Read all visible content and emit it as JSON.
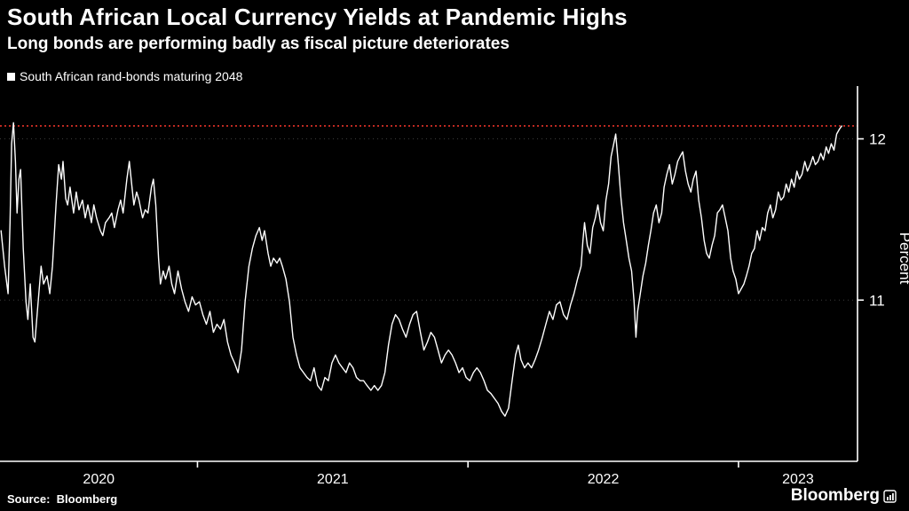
{
  "header": {
    "title": "South African Local Currency Yields at Pandemic Highs",
    "subtitle": "Long bonds are performing badly as fiscal picture deteriorates"
  },
  "legend": {
    "label": "South African rand-bonds maturing 2048",
    "marker_color": "#ffffff"
  },
  "footer": {
    "source": "Source:  Bloomberg",
    "brand": "Bloomberg"
  },
  "chart_data": {
    "type": "line",
    "title": "South African Local Currency Yields at Pandemic Highs",
    "subtitle": "Long bonds are performing badly as fiscal picture deteriorates",
    "xlabel": "",
    "ylabel": "Percent",
    "xlim": [
      2020.27,
      2023.44
    ],
    "ylim": [
      10.0,
      12.3
    ],
    "y_ticks": [
      11,
      12
    ],
    "x_year_boundaries": [
      2021,
      2022,
      2023
    ],
    "x_year_labels": [
      "2020",
      "2021",
      "2022",
      "2023"
    ],
    "grid": "horizontal-dotted",
    "legend_position": "top-left",
    "colors": {
      "background": "#000000",
      "line": "#ffffff",
      "axis": "#ffffff",
      "grid": "#3c3c3c",
      "reference": "#e63329"
    },
    "reference_line": {
      "value": 12.08,
      "color": "#e63329",
      "style": "dotted"
    },
    "series": [
      {
        "name": "South African rand-bonds maturing 2048",
        "color": "#ffffff",
        "points": [
          [
            2020.274,
            11.43
          ],
          [
            2020.287,
            11.21
          ],
          [
            2020.3,
            11.04
          ],
          [
            2020.307,
            11.48
          ],
          [
            2020.313,
            11.97
          ],
          [
            2020.32,
            12.1
          ],
          [
            2020.327,
            11.86
          ],
          [
            2020.333,
            11.54
          ],
          [
            2020.34,
            11.75
          ],
          [
            2020.346,
            11.81
          ],
          [
            2020.356,
            11.32
          ],
          [
            2020.366,
            10.99
          ],
          [
            2020.373,
            10.88
          ],
          [
            2020.382,
            11.1
          ],
          [
            2020.392,
            10.77
          ],
          [
            2020.399,
            10.74
          ],
          [
            2020.408,
            10.93
          ],
          [
            2020.422,
            11.21
          ],
          [
            2020.431,
            11.1
          ],
          [
            2020.444,
            11.15
          ],
          [
            2020.454,
            11.04
          ],
          [
            2020.464,
            11.21
          ],
          [
            2020.477,
            11.59
          ],
          [
            2020.487,
            11.84
          ],
          [
            2020.497,
            11.75
          ],
          [
            2020.503,
            11.86
          ],
          [
            2020.513,
            11.63
          ],
          [
            2020.52,
            11.59
          ],
          [
            2020.529,
            11.7
          ],
          [
            2020.542,
            11.54
          ],
          [
            2020.552,
            11.67
          ],
          [
            2020.562,
            11.56
          ],
          [
            2020.575,
            11.62
          ],
          [
            2020.585,
            11.51
          ],
          [
            2020.595,
            11.59
          ],
          [
            2020.608,
            11.48
          ],
          [
            2020.617,
            11.59
          ],
          [
            2020.627,
            11.51
          ],
          [
            2020.641,
            11.43
          ],
          [
            2020.65,
            11.4
          ],
          [
            2020.66,
            11.48
          ],
          [
            2020.673,
            11.51
          ],
          [
            2020.683,
            11.54
          ],
          [
            2020.693,
            11.45
          ],
          [
            2020.706,
            11.56
          ],
          [
            2020.716,
            11.62
          ],
          [
            2020.725,
            11.54
          ],
          [
            2020.739,
            11.75
          ],
          [
            2020.748,
            11.86
          ],
          [
            2020.758,
            11.7
          ],
          [
            2020.765,
            11.59
          ],
          [
            2020.775,
            11.67
          ],
          [
            2020.784,
            11.62
          ],
          [
            2020.797,
            11.51
          ],
          [
            2020.807,
            11.56
          ],
          [
            2020.817,
            11.54
          ],
          [
            2020.83,
            11.7
          ],
          [
            2020.837,
            11.75
          ],
          [
            2020.846,
            11.59
          ],
          [
            2020.856,
            11.26
          ],
          [
            2020.863,
            11.1
          ],
          [
            2020.873,
            11.18
          ],
          [
            2020.882,
            11.13
          ],
          [
            2020.895,
            11.21
          ],
          [
            2020.905,
            11.1
          ],
          [
            2020.915,
            11.04
          ],
          [
            2020.928,
            11.18
          ],
          [
            2020.941,
            11.07
          ],
          [
            2020.954,
            10.99
          ],
          [
            2020.967,
            10.93
          ],
          [
            2020.98,
            11.02
          ],
          [
            2020.993,
            10.97
          ],
          [
            2021.007,
            10.99
          ],
          [
            2021.02,
            10.91
          ],
          [
            2021.033,
            10.85
          ],
          [
            2021.046,
            10.93
          ],
          [
            2021.059,
            10.8
          ],
          [
            2021.072,
            10.85
          ],
          [
            2021.085,
            10.82
          ],
          [
            2021.098,
            10.88
          ],
          [
            2021.111,
            10.74
          ],
          [
            2021.124,
            10.66
          ],
          [
            2021.137,
            10.61
          ],
          [
            2021.15,
            10.55
          ],
          [
            2021.163,
            10.69
          ],
          [
            2021.176,
            10.99
          ],
          [
            2021.19,
            11.21
          ],
          [
            2021.203,
            11.32
          ],
          [
            2021.216,
            11.4
          ],
          [
            2021.229,
            11.45
          ],
          [
            2021.239,
            11.37
          ],
          [
            2021.248,
            11.43
          ],
          [
            2021.261,
            11.29
          ],
          [
            2021.271,
            11.21
          ],
          [
            2021.281,
            11.26
          ],
          [
            2021.294,
            11.23
          ],
          [
            2021.304,
            11.26
          ],
          [
            2021.314,
            11.21
          ],
          [
            2021.327,
            11.13
          ],
          [
            2021.34,
            10.99
          ],
          [
            2021.353,
            10.77
          ],
          [
            2021.366,
            10.66
          ],
          [
            2021.379,
            10.58
          ],
          [
            2021.392,
            10.55
          ],
          [
            2021.405,
            10.52
          ],
          [
            2021.418,
            10.5
          ],
          [
            2021.431,
            10.58
          ],
          [
            2021.444,
            10.47
          ],
          [
            2021.458,
            10.44
          ],
          [
            2021.471,
            10.52
          ],
          [
            2021.484,
            10.5
          ],
          [
            2021.497,
            10.61
          ],
          [
            2021.51,
            10.66
          ],
          [
            2021.523,
            10.61
          ],
          [
            2021.536,
            10.58
          ],
          [
            2021.549,
            10.55
          ],
          [
            2021.562,
            10.61
          ],
          [
            2021.575,
            10.58
          ],
          [
            2021.588,
            10.52
          ],
          [
            2021.601,
            10.5
          ],
          [
            2021.614,
            10.5
          ],
          [
            2021.627,
            10.47
          ],
          [
            2021.641,
            10.44
          ],
          [
            2021.654,
            10.47
          ],
          [
            2021.667,
            10.44
          ],
          [
            2021.68,
            10.47
          ],
          [
            2021.693,
            10.55
          ],
          [
            2021.706,
            10.72
          ],
          [
            2021.719,
            10.85
          ],
          [
            2021.732,
            10.91
          ],
          [
            2021.745,
            10.88
          ],
          [
            2021.758,
            10.82
          ],
          [
            2021.771,
            10.77
          ],
          [
            2021.784,
            10.85
          ],
          [
            2021.797,
            10.91
          ],
          [
            2021.81,
            10.93
          ],
          [
            2021.824,
            10.8
          ],
          [
            2021.837,
            10.69
          ],
          [
            2021.85,
            10.74
          ],
          [
            2021.863,
            10.8
          ],
          [
            2021.876,
            10.77
          ],
          [
            2021.889,
            10.69
          ],
          [
            2021.902,
            10.61
          ],
          [
            2021.915,
            10.66
          ],
          [
            2021.928,
            10.69
          ],
          [
            2021.941,
            10.66
          ],
          [
            2021.954,
            10.61
          ],
          [
            2021.967,
            10.55
          ],
          [
            2021.98,
            10.58
          ],
          [
            2021.993,
            10.52
          ],
          [
            2022.007,
            10.5
          ],
          [
            2022.02,
            10.55
          ],
          [
            2022.033,
            10.58
          ],
          [
            2022.046,
            10.55
          ],
          [
            2022.059,
            10.5
          ],
          [
            2022.072,
            10.44
          ],
          [
            2022.085,
            10.42
          ],
          [
            2022.098,
            10.39
          ],
          [
            2022.111,
            10.36
          ],
          [
            2022.124,
            10.31
          ],
          [
            2022.137,
            10.28
          ],
          [
            2022.15,
            10.33
          ],
          [
            2022.163,
            10.5
          ],
          [
            2022.176,
            10.66
          ],
          [
            2022.186,
            10.72
          ],
          [
            2022.196,
            10.63
          ],
          [
            2022.209,
            10.58
          ],
          [
            2022.222,
            10.61
          ],
          [
            2022.235,
            10.58
          ],
          [
            2022.248,
            10.63
          ],
          [
            2022.261,
            10.69
          ],
          [
            2022.275,
            10.77
          ],
          [
            2022.288,
            10.85
          ],
          [
            2022.301,
            10.93
          ],
          [
            2022.314,
            10.88
          ],
          [
            2022.327,
            10.97
          ],
          [
            2022.34,
            10.99
          ],
          [
            2022.353,
            10.91
          ],
          [
            2022.366,
            10.88
          ],
          [
            2022.379,
            10.97
          ],
          [
            2022.392,
            11.04
          ],
          [
            2022.405,
            11.13
          ],
          [
            2022.418,
            11.21
          ],
          [
            2022.425,
            11.37
          ],
          [
            2022.431,
            11.48
          ],
          [
            2022.441,
            11.34
          ],
          [
            2022.451,
            11.29
          ],
          [
            2022.461,
            11.45
          ],
          [
            2022.471,
            11.51
          ],
          [
            2022.48,
            11.59
          ],
          [
            2022.49,
            11.48
          ],
          [
            2022.5,
            11.43
          ],
          [
            2022.51,
            11.62
          ],
          [
            2022.52,
            11.72
          ],
          [
            2022.529,
            11.89
          ],
          [
            2022.539,
            11.97
          ],
          [
            2022.546,
            12.03
          ],
          [
            2022.556,
            11.84
          ],
          [
            2022.565,
            11.64
          ],
          [
            2022.575,
            11.48
          ],
          [
            2022.585,
            11.37
          ],
          [
            2022.595,
            11.26
          ],
          [
            2022.605,
            11.18
          ],
          [
            2022.614,
            10.99
          ],
          [
            2022.621,
            10.77
          ],
          [
            2022.627,
            10.93
          ],
          [
            2022.637,
            11.04
          ],
          [
            2022.647,
            11.15
          ],
          [
            2022.657,
            11.23
          ],
          [
            2022.667,
            11.34
          ],
          [
            2022.676,
            11.43
          ],
          [
            2022.686,
            11.54
          ],
          [
            2022.696,
            11.59
          ],
          [
            2022.706,
            11.48
          ],
          [
            2022.716,
            11.54
          ],
          [
            2022.725,
            11.7
          ],
          [
            2022.735,
            11.78
          ],
          [
            2022.745,
            11.84
          ],
          [
            2022.755,
            11.72
          ],
          [
            2022.765,
            11.78
          ],
          [
            2022.775,
            11.86
          ],
          [
            2022.784,
            11.89
          ],
          [
            2022.794,
            11.92
          ],
          [
            2022.804,
            11.8
          ],
          [
            2022.814,
            11.72
          ],
          [
            2022.824,
            11.67
          ],
          [
            2022.833,
            11.75
          ],
          [
            2022.843,
            11.8
          ],
          [
            2022.853,
            11.62
          ],
          [
            2022.863,
            11.51
          ],
          [
            2022.873,
            11.37
          ],
          [
            2022.882,
            11.29
          ],
          [
            2022.892,
            11.26
          ],
          [
            2022.902,
            11.34
          ],
          [
            2022.912,
            11.4
          ],
          [
            2022.922,
            11.54
          ],
          [
            2022.931,
            11.56
          ],
          [
            2022.941,
            11.59
          ],
          [
            2022.951,
            11.51
          ],
          [
            2022.961,
            11.43
          ],
          [
            2022.971,
            11.26
          ],
          [
            2022.98,
            11.18
          ],
          [
            2022.99,
            11.13
          ],
          [
            2023.0,
            11.04
          ],
          [
            2023.01,
            11.07
          ],
          [
            2023.02,
            11.1
          ],
          [
            2023.029,
            11.15
          ],
          [
            2023.039,
            11.21
          ],
          [
            2023.049,
            11.29
          ],
          [
            2023.059,
            11.32
          ],
          [
            2023.069,
            11.43
          ],
          [
            2023.078,
            11.37
          ],
          [
            2023.088,
            11.45
          ],
          [
            2023.098,
            11.43
          ],
          [
            2023.108,
            11.54
          ],
          [
            2023.118,
            11.59
          ],
          [
            2023.127,
            11.51
          ],
          [
            2023.137,
            11.56
          ],
          [
            2023.147,
            11.67
          ],
          [
            2023.157,
            11.62
          ],
          [
            2023.167,
            11.64
          ],
          [
            2023.176,
            11.72
          ],
          [
            2023.186,
            11.67
          ],
          [
            2023.196,
            11.75
          ],
          [
            2023.206,
            11.7
          ],
          [
            2023.216,
            11.8
          ],
          [
            2023.225,
            11.75
          ],
          [
            2023.235,
            11.78
          ],
          [
            2023.245,
            11.86
          ],
          [
            2023.255,
            11.8
          ],
          [
            2023.265,
            11.84
          ],
          [
            2023.275,
            11.89
          ],
          [
            2023.284,
            11.84
          ],
          [
            2023.294,
            11.86
          ],
          [
            2023.304,
            11.91
          ],
          [
            2023.314,
            11.87
          ],
          [
            2023.324,
            11.95
          ],
          [
            2023.333,
            11.91
          ],
          [
            2023.343,
            11.97
          ],
          [
            2023.353,
            11.93
          ],
          [
            2023.363,
            12.03
          ],
          [
            2023.373,
            12.06
          ],
          [
            2023.382,
            12.08
          ]
        ]
      }
    ]
  }
}
